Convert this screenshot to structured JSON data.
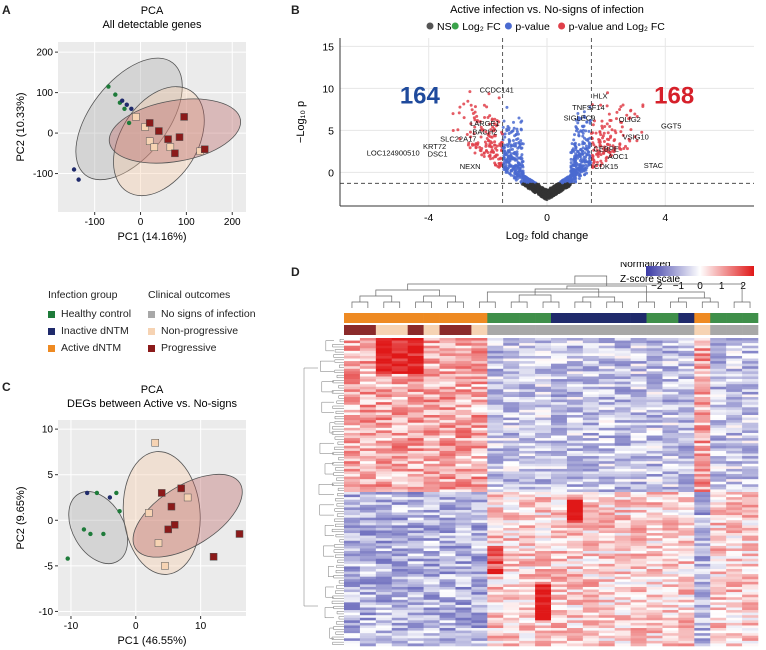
{
  "panel_letters": {
    "a": "A",
    "b": "B",
    "c": "C",
    "d": "D"
  },
  "legend": {
    "infection_title": "Infection group",
    "infection_items": [
      {
        "label": "Healthy control",
        "color": "#1e7b3a"
      },
      {
        "label": "Inactive dNTM",
        "color": "#1f2a6b"
      },
      {
        "label": "Active dNTM",
        "color": "#ee8a22"
      }
    ],
    "clinical_title": "Clinical outcomes",
    "clinical_items": [
      {
        "label": "No signs of infection",
        "color": "#a8a8a8"
      },
      {
        "label": "Non-progressive",
        "color": "#f6d3b3"
      },
      {
        "label": "Progressive",
        "color": "#8b1a1a"
      }
    ]
  },
  "chart_data": [
    {
      "id": "pca_all",
      "type": "scatter",
      "title": "PCA",
      "subtitle": "All detectable genes",
      "xlabel": "PC1 (14.16%)",
      "ylabel": "PC2 (10.33%)",
      "xlim": [
        -180,
        230
      ],
      "ylim": [
        -195,
        225
      ],
      "xticks": [
        -100,
        0,
        100,
        200
      ],
      "yticks": [
        -100,
        0,
        100,
        200
      ],
      "ellipses": [
        {
          "group": "No signs of infection",
          "cx": -25,
          "cy": 35,
          "rx": 155,
          "ry": 95,
          "angle": -52,
          "color": "#a8a8a8"
        },
        {
          "group": "Non-progressive",
          "cx": 40,
          "cy": -20,
          "rx": 130,
          "ry": 95,
          "angle": -58,
          "color": "#f6c9a3"
        },
        {
          "group": "Progressive",
          "cx": 75,
          "cy": 5,
          "rx": 145,
          "ry": 75,
          "angle": -10,
          "color": "#b85c5c"
        }
      ],
      "series": [
        {
          "name": "Healthy control",
          "shape": "dot",
          "color": "#1e7b3a",
          "x": [
            -70,
            -55,
            -45,
            -35,
            -25
          ],
          "y": [
            115,
            95,
            75,
            60,
            25
          ]
        },
        {
          "name": "Inactive dNTM",
          "shape": "dot",
          "color": "#1f2a6b",
          "x": [
            -40,
            -30,
            -20,
            -145,
            -135
          ],
          "y": [
            80,
            70,
            60,
            -90,
            -115
          ]
        },
        {
          "name": "Non-progressive",
          "shape": "square",
          "color": "#f6d3b3",
          "x": [
            -10,
            10,
            20,
            30,
            65,
            130
          ],
          "y": [
            40,
            15,
            -20,
            -35,
            -35,
            -45
          ]
        },
        {
          "name": "Progressive",
          "shape": "square",
          "color": "#8b1a1a",
          "x": [
            20,
            40,
            60,
            75,
            95,
            85,
            140
          ],
          "y": [
            25,
            5,
            -15,
            -50,
            40,
            -10,
            -40
          ]
        }
      ]
    },
    {
      "id": "pca_degs",
      "type": "scatter",
      "title": "PCA",
      "subtitle": "DEGs between Active vs. No-signs",
      "xlabel": "PC1 (46.55%)",
      "ylabel": "PC2 (9.65%)",
      "xlim": [
        -12,
        17
      ],
      "ylim": [
        -10.5,
        11
      ],
      "xticks": [
        -10,
        0,
        10
      ],
      "yticks": [
        -10,
        -5,
        0,
        5,
        10
      ],
      "ellipses": [
        {
          "group": "No signs of infection",
          "cx": -5.8,
          "cy": -0.8,
          "rx": 6,
          "ry": 2.8,
          "angle": 60,
          "color": "#a8a8a8"
        },
        {
          "group": "Non-progressive",
          "cx": 4,
          "cy": 0.8,
          "rx": 9.5,
          "ry": 4.2,
          "angle": 85,
          "color": "#f6c9a3"
        },
        {
          "group": "Progressive",
          "cx": 8,
          "cy": 0.5,
          "rx": 9.5,
          "ry": 3.3,
          "angle": -32,
          "color": "#b85c5c"
        }
      ],
      "series": [
        {
          "name": "Healthy control",
          "shape": "dot",
          "color": "#1e7b3a",
          "x": [
            -10.5,
            -8,
            -7,
            -6,
            -5,
            -3,
            -2.5
          ],
          "y": [
            -4.2,
            -1,
            -1.5,
            3,
            -1.5,
            3,
            1
          ]
        },
        {
          "name": "Inactive dNTM",
          "shape": "dot",
          "color": "#1f2a6b",
          "x": [
            -7.5,
            -4
          ],
          "y": [
            3,
            2.5
          ]
        },
        {
          "name": "Non-progressive",
          "shape": "square",
          "color": "#f6d3b3",
          "x": [
            3,
            2,
            3.5,
            4.5,
            8
          ],
          "y": [
            8.5,
            0.8,
            -2.5,
            -5,
            2.5
          ]
        },
        {
          "name": "Progressive",
          "shape": "square",
          "color": "#8b1a1a",
          "x": [
            4,
            5,
            5.5,
            6,
            7,
            12,
            16
          ],
          "y": [
            3,
            -1,
            1.5,
            -0.5,
            3.5,
            -4,
            -1.5
          ]
        }
      ]
    },
    {
      "id": "volcano",
      "type": "scatter",
      "title": "Active infection vs. No-signs of infection",
      "legend_items": [
        {
          "label": "NS",
          "color": "#555555"
        },
        {
          "label": "Log₂ FC",
          "color": "#3aa24a"
        },
        {
          "label": "p-value",
          "color": "#4a6ad0"
        },
        {
          "label": "p-value and Log₂ FC",
          "color": "#e0404a"
        }
      ],
      "xlabel": "Log₂ fold change",
      "ylabel": "−Log₁₀ p",
      "xlim": [
        -7,
        7
      ],
      "ylim": [
        -4,
        16
      ],
      "xticks": [
        -4,
        0,
        4
      ],
      "yticks": [
        0,
        5,
        10,
        15
      ],
      "fc_cutoff": 1.5,
      "p_cutoff": -1.3,
      "down_count": "164",
      "up_count": "168",
      "down_color": "#1f4a9c",
      "up_color": "#d6202a",
      "labels": [
        {
          "text": "CCDC141",
          "x": -1.7,
          "y": 9.5
        },
        {
          "text": "HLX",
          "x": 1.8,
          "y": 8.8
        },
        {
          "text": "TNFSF14",
          "x": 1.4,
          "y": 7.4
        },
        {
          "text": "SIGLEC9",
          "x": 1.1,
          "y": 6.2
        },
        {
          "text": "OLIG2",
          "x": 2.8,
          "y": 6.0
        },
        {
          "text": "GGT5",
          "x": 4.2,
          "y": 5.2
        },
        {
          "text": "LARGE1",
          "x": -2.1,
          "y": 5.5
        },
        {
          "text": "BACH2",
          "x": -2.1,
          "y": 4.5
        },
        {
          "text": "SLC22A17",
          "x": -3.0,
          "y": 3.7
        },
        {
          "text": "VSIG10",
          "x": 3.0,
          "y": 3.9
        },
        {
          "text": "KRT72",
          "x": -3.8,
          "y": 2.8
        },
        {
          "text": "LOC124900510",
          "x": -5.2,
          "y": 2.0
        },
        {
          "text": "DSC1",
          "x": -3.7,
          "y": 1.9
        },
        {
          "text": "NEXN",
          "x": -2.6,
          "y": 0.4
        },
        {
          "text": "CEBPE",
          "x": 2.0,
          "y": 2.5
        },
        {
          "text": "AOC1",
          "x": 2.4,
          "y": 1.6
        },
        {
          "text": "STAC",
          "x": 3.6,
          "y": 0.5
        },
        {
          "text": "CDK15",
          "x": 2.0,
          "y": 0.4
        }
      ]
    },
    {
      "id": "heatmap",
      "type": "heatmap",
      "scale_title": "Normalized",
      "scale_subtitle": "Z-score scale",
      "scale_ticks": [
        "−2",
        "−1",
        "0",
        "1",
        "2"
      ],
      "scale_range": [
        -2.5,
        2.5
      ],
      "columns": 26,
      "rows": 120,
      "col_groups": [
        "A",
        "A",
        "A",
        "A",
        "A",
        "A",
        "A",
        "A",
        "A",
        "H",
        "H",
        "H",
        "H",
        "I",
        "I",
        "I",
        "I",
        "I",
        "I",
        "H",
        "H",
        "I",
        "A",
        "H",
        "H",
        "H"
      ],
      "col_outcomes": [
        "P",
        "P",
        "N",
        "N",
        "P",
        "N",
        "P",
        "P",
        "N",
        "S",
        "S",
        "S",
        "S",
        "S",
        "S",
        "S",
        "S",
        "S",
        "S",
        "S",
        "S",
        "S",
        "N",
        "S",
        "S",
        "S"
      ],
      "group_colors": {
        "A": "#ee8a22",
        "H": "#3f8f4a",
        "I": "#1f2a6b"
      },
      "outcome_colors": {
        "P": "#8b2a2a",
        "N": "#f6d3b3",
        "S": "#a8a8a8"
      }
    }
  ]
}
